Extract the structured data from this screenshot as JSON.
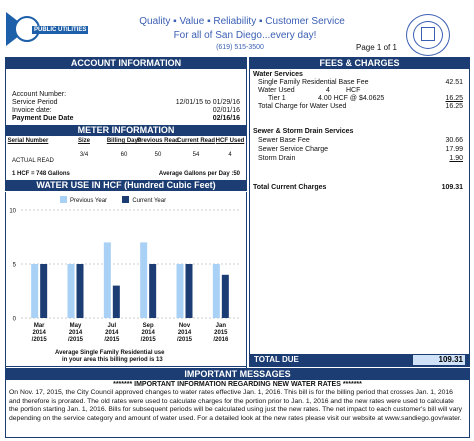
{
  "header": {
    "logo_text": "PUBLIC UTILITIES",
    "tagline": "Quality  ▪  Value  ▪  Reliability  ▪  Customer Service",
    "subline": "For all of San Diego...every day!",
    "phone": "(619) 515-3500",
    "page": "Page 1 of 1"
  },
  "account": {
    "title": "ACCOUNT INFORMATION",
    "account_number_label": "Account Number:",
    "service_period_label": "Service Period",
    "service_period": "12/01/15 to 01/29/16",
    "invoice_date_label": "Invoice date:",
    "invoice_date": "02/01/16",
    "due_date_label": "Payment Due Date",
    "due_date": "02/16/16"
  },
  "meter": {
    "title": "METER INFORMATION",
    "columns": [
      "Serial Number",
      "Size",
      "Billing Days",
      "Previous Read",
      "Current Read",
      "HCF Used"
    ],
    "values": [
      "",
      "3/4",
      "60",
      "50",
      "54",
      "4"
    ],
    "read_type": "ACTUAL READ",
    "footnote_left": "1 HCF = 748 Gallons",
    "footnote_right": "Average Gallons per Day :50"
  },
  "water_use": {
    "title": "WATER USE IN HCF (Hundred Cubic Feet)",
    "legend_prev": "Previous Year",
    "legend_curr": "Current Year",
    "avg_note_1": "Average Single Family Residential use",
    "avg_note_2": "in your area this billing period is 13",
    "colors": {
      "previous": "#a9d0f5",
      "current": "#1c3d73"
    }
  },
  "chart_data": {
    "type": "bar",
    "categories": [
      "Mar 2014 /2015",
      "May 2014 /2015",
      "Jul 2014 /2015",
      "Sep 2014 /2015",
      "Nov 2014 /2015",
      "Jan 2015 /2016"
    ],
    "category_lines": [
      [
        "Mar",
        "2014",
        "/2015"
      ],
      [
        "May",
        "2014",
        "/2015"
      ],
      [
        "Jul",
        "2014",
        "/2015"
      ],
      [
        "Sep",
        "2014",
        "/2015"
      ],
      [
        "Nov",
        "2014",
        "/2015"
      ],
      [
        "Jan",
        "2015",
        "/2016"
      ]
    ],
    "series": [
      {
        "name": "Previous Year",
        "values": [
          5,
          5,
          7,
          7,
          5,
          5
        ]
      },
      {
        "name": "Current Year",
        "values": [
          5,
          5,
          3,
          5,
          5,
          4
        ]
      }
    ],
    "ylim": [
      0,
      10
    ],
    "yticks": [
      0,
      5,
      10
    ],
    "grid": true
  },
  "fees": {
    "title": "FEES & CHARGES",
    "water_services": "Water Services",
    "base_fee_label": "Single Family Residential Base Fee",
    "base_fee": "42.51",
    "water_used_label": "Water Used",
    "water_used_qty": "4",
    "water_used_unit": "HCF",
    "tier_label": "Tier 1",
    "tier_detail": "4.00  HCF  @  $4.0625",
    "tier_amount": "16.25",
    "total_water_label": "Total Charge for Water Used",
    "total_water": "16.25",
    "sewer_title": "Sewer & Storm Drain Services",
    "sewer_base_label": "Sewer Base Fee",
    "sewer_base": "30.66",
    "sewer_service_label": "Sewer Service Charge",
    "sewer_service": "17.99",
    "storm_label": "Storm Drain",
    "storm": "1.90",
    "total_current_label": "Total Current Charges",
    "total_current": "109.31",
    "total_due_label": "TOTAL DUE",
    "total_due": "109.31"
  },
  "messages": {
    "title": "IMPORTANT MESSAGES",
    "subtitle": "******* IMPORTANT INFORMATION REGARDING NEW WATER RATES *******",
    "body": "On Nov. 17, 2015, the City Council approved changes to water rates effective Jan. 1, 2016. This bill is for the billing period that crosses Jan. 1, 2016 and therefore is prorated. The old rates were used to calculate charges for the portion prior to Jan. 1, 2016 and the new rates were used to calculate the portion starting Jan. 1, 2016. Bills for subsequent periods will be calculated using just the new rates. The net impact to each customer's bill will vary depending on the service category and amount of water used. For a detailed look at the new rates please visit our website at www.sandiego.gov/water."
  }
}
